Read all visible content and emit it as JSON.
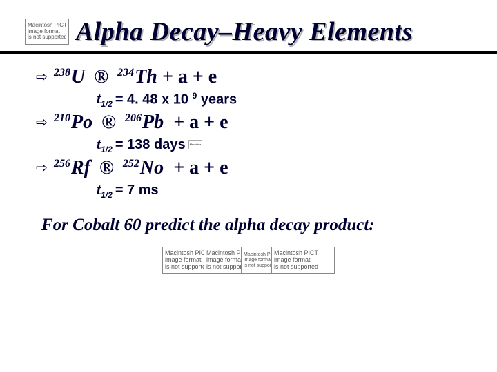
{
  "colors": {
    "text": "#000033",
    "background": "#ffffff",
    "rule": "#000000"
  },
  "title": "Alpha Decay–Heavy Elements",
  "placeholder": {
    "l1": "Macintosh PICT",
    "l2": "image format",
    "l3": "is not supported"
  },
  "items": [
    {
      "parent_mass": "238",
      "parent_sym": "U",
      "child_mass": "234",
      "child_sym": "Th",
      "tail": "a  + e",
      "half_prefix": "t",
      "half_sub": "1/2",
      "half_eq": " = 4. 48 x 10 ",
      "half_sup": "9",
      "half_suffix": " years"
    },
    {
      "parent_mass": "210",
      "parent_sym": "Po",
      "child_mass": "206",
      "child_sym": "Pb",
      "tail": "a  + e",
      "half_prefix": "t",
      "half_sub": "1/2",
      "half_eq": " = 138 days",
      "half_sup": "",
      "half_suffix": ""
    },
    {
      "parent_mass": "256",
      "parent_sym": "Rf",
      "child_mass": "252",
      "child_sym": "No",
      "tail": "a + e",
      "half_prefix": "t",
      "half_sub": "1/2",
      "half_eq": " = 7 ms",
      "half_sup": "",
      "half_suffix": ""
    }
  ],
  "arrow_symbol": "®",
  "plus": " + ",
  "question": "For Cobalt 60 predict  the alpha decay product:"
}
